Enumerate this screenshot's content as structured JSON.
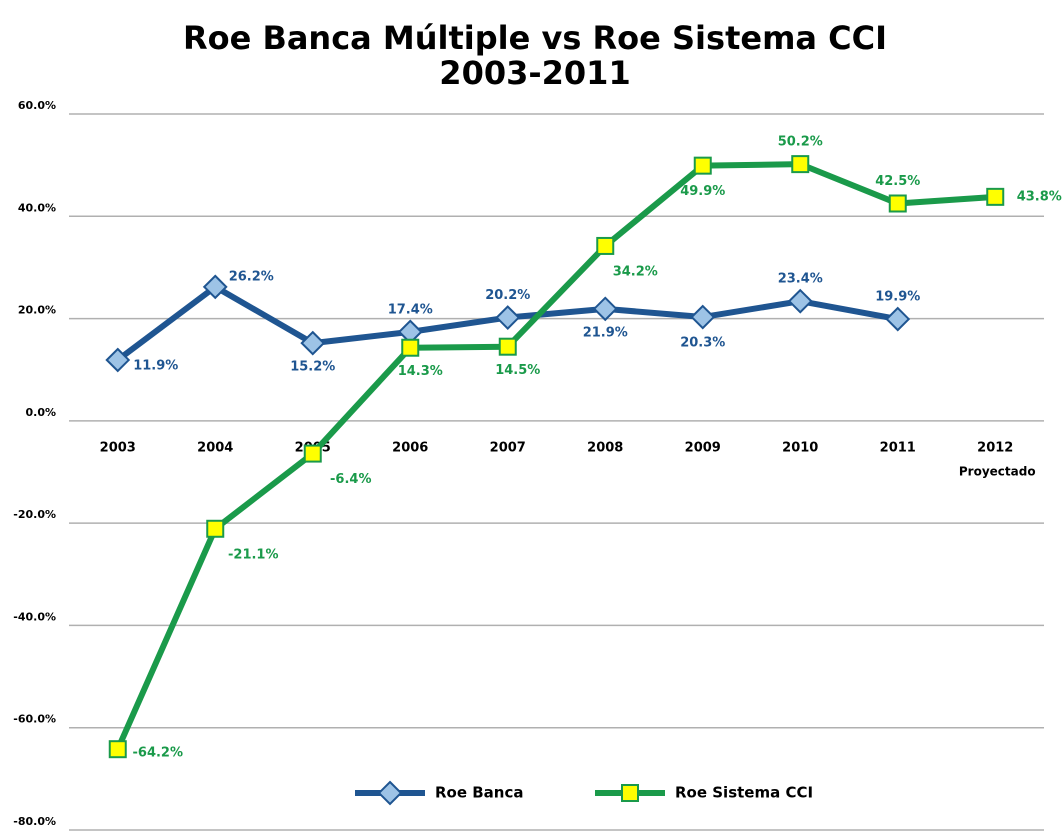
{
  "chart_data": {
    "type": "line",
    "title": "Roe Banca Múltiple vs Roe Sistema CCI",
    "subtitle": "2003-2011",
    "categories": [
      "2003",
      "2004",
      "2005",
      "2006",
      "2007",
      "2008",
      "2009",
      "2010",
      "2011",
      "2012"
    ],
    "annotation": "Proyectado",
    "series": [
      {
        "name": "Roe Banca",
        "color": "#1f5591",
        "marker_color": "#9dc3e6",
        "marker": "diamond",
        "values": [
          11.9,
          26.2,
          15.2,
          17.4,
          20.2,
          21.9,
          20.3,
          23.4,
          19.9,
          null
        ],
        "value_labels": [
          "11.9%",
          "26.2%",
          "15.2%",
          "17.4%",
          "20.2%",
          "21.9%",
          "20.3%",
          "23.4%",
          "19.9%",
          null
        ]
      },
      {
        "name": "Roe Sistema CCI",
        "color": "#1a9a4a",
        "marker_color": "#ffff00",
        "marker": "square",
        "values": [
          -64.2,
          -21.1,
          -6.4,
          14.3,
          14.5,
          34.2,
          49.9,
          50.2,
          42.5,
          43.8
        ],
        "value_labels": [
          "-64.2%",
          "-21.1%",
          "-6.4%",
          "14.3%",
          "14.5%",
          "34.2%",
          "49.9%",
          "50.2%",
          "42.5%",
          "43.8%"
        ]
      }
    ],
    "ylim": [
      -80,
      60
    ],
    "yticks": [
      {
        "value": -80,
        "label": "-80.0%"
      },
      {
        "value": -60,
        "label": "-60.0%"
      },
      {
        "value": -40,
        "label": "-40.0%"
      },
      {
        "value": -20,
        "label": "-20.0%"
      },
      {
        "value": 0,
        "label": "0.0%"
      },
      {
        "value": 20,
        "label": "20.0%"
      },
      {
        "value": 40,
        "label": "40.0%"
      },
      {
        "value": 60,
        "label": "60.0%"
      }
    ],
    "grid": true,
    "legend": "bottom"
  }
}
